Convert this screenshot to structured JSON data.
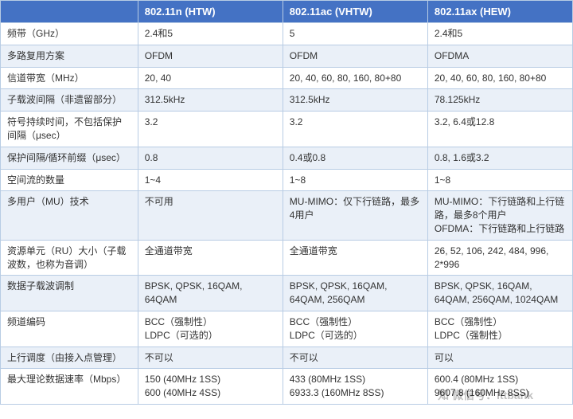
{
  "table": {
    "header_bg": "#4472c4",
    "header_color": "#ffffff",
    "row_alt_bg": "#eaf0f8",
    "border_color": "#b8cce4",
    "columns": [
      "",
      "802.11n (HTW)",
      "802.11ac (VHTW)",
      "802.11ax (HEW)"
    ],
    "rows": [
      {
        "label": "频带（GHz）",
        "n": "2.4和5",
        "ac": "5",
        "ax": "2.4和5"
      },
      {
        "label": "多路复用方案",
        "n": "OFDM",
        "ac": "OFDM",
        "ax": "OFDMA"
      },
      {
        "label": "信道带宽（MHz）",
        "n": "20, 40",
        "ac": "20, 40, 60, 80, 160, 80+80",
        "ax": "20, 40, 60, 80, 160, 80+80"
      },
      {
        "label": "子载波间隔（非遗留部分）",
        "n": "312.5kHz",
        "ac": "312.5kHz",
        "ax": "78.125kHz"
      },
      {
        "label": "符号持续时间，不包括保护间隔（μsec）",
        "n": "3.2",
        "ac": "3.2",
        "ax": "3.2, 6.4或12.8"
      },
      {
        "label": "保护间隔/循环前缀（μsec）",
        "n": "0.8",
        "ac": "0.4或0.8",
        "ax": "0.8, 1.6或3.2"
      },
      {
        "label": "空间流的数量",
        "n": "1~4",
        "ac": "1~8",
        "ax": "1~8"
      },
      {
        "label": "多用户（MU）技术",
        "n": "不可用",
        "ac": "MU-MIMO：仅下行链路，最多4用户",
        "ax": "MU-MIMO：下行链路和上行链路，最多8个用户\nOFDMA：下行链路和上行链路"
      },
      {
        "label": "资源单元（RU）大小（子载波数，也称为音调）",
        "n": "全通道带宽",
        "ac": "全通道带宽",
        "ax": "26, 52, 106, 242, 484, 996, 2*996"
      },
      {
        "label": "数据子载波调制",
        "n": "BPSK, QPSK, 16QAM, 64QAM",
        "ac": "BPSK, QPSK, 16QAM, 64QAM, 256QAM",
        "ax": "BPSK, QPSK, 16QAM, 64QAM, 256QAM, 1024QAM"
      },
      {
        "label": "频道编码",
        "n": "BCC（强制性）\nLDPC（可选的）",
        "ac": "BCC（强制性）\nLDPC（可选的）",
        "ax": "BCC（强制性）\nLDPC（强制性）"
      },
      {
        "label": "上行调度（由接入点管理）",
        "n": "不可以",
        "ac": "不可以",
        "ax": "可以"
      },
      {
        "label": "最大理论数据速率（Mbps）",
        "n": "150 (40MHz 1SS)\n600 (40MHz 4SS)",
        "ac": "433 (80MHz 1SS)\n6933.3 (160MHz 8SS)",
        "ax": "600.4 (80MHz 1SS)\n9607.8 (160MHz 8SS)"
      }
    ]
  },
  "watermark": {
    "text": "微信号：ittbank"
  }
}
